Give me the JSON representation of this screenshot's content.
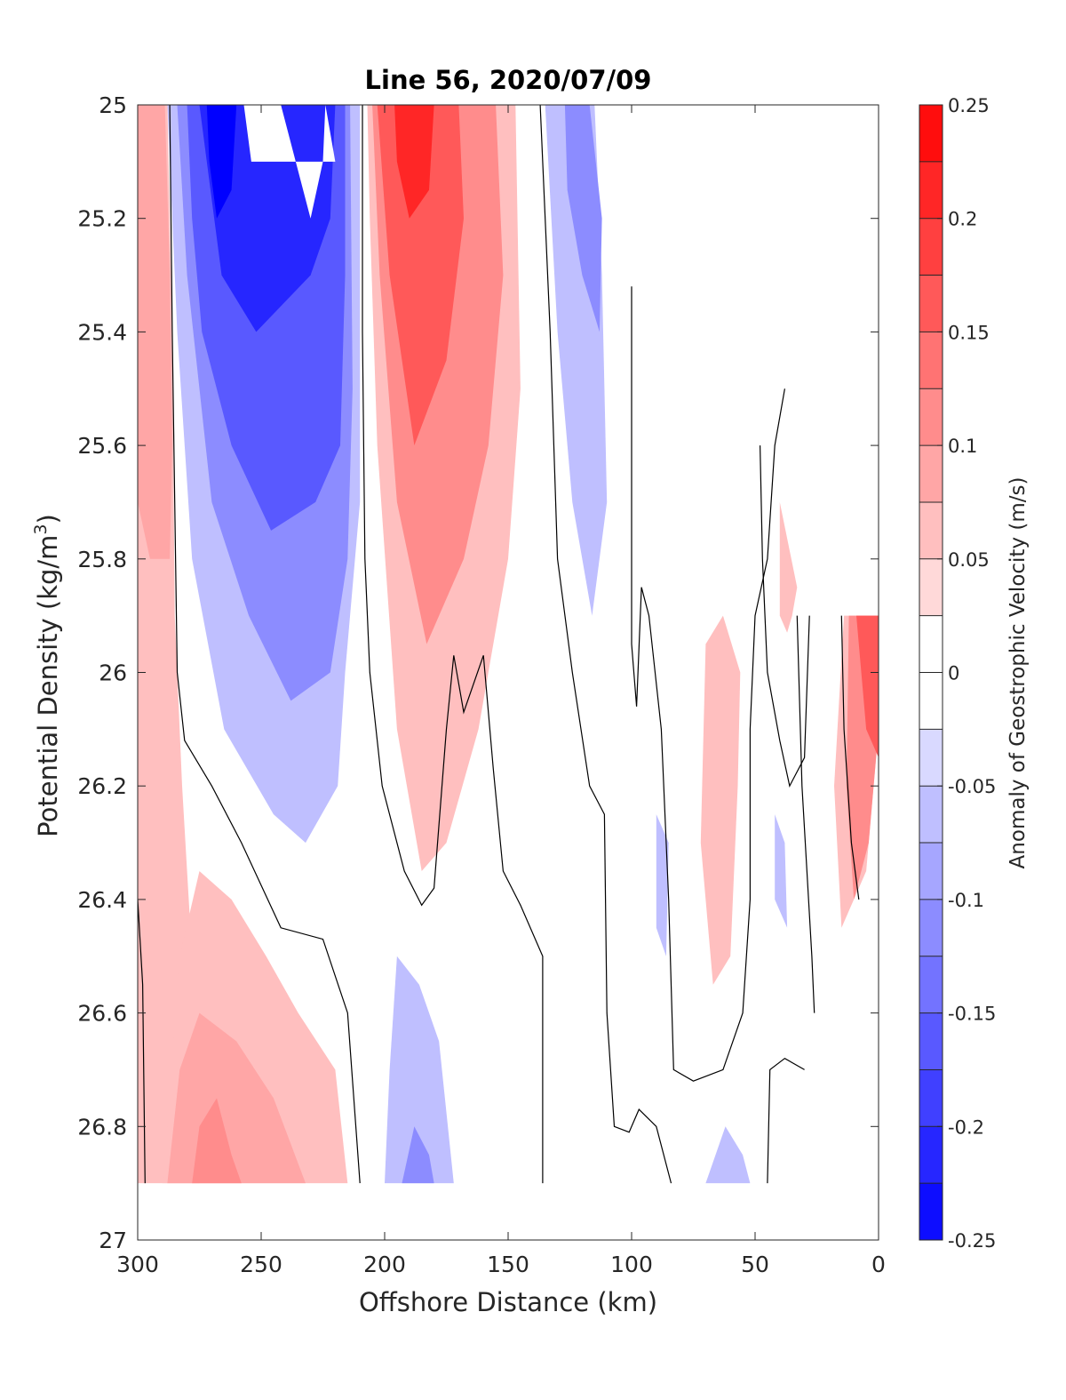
{
  "chart_data": {
    "type": "heatmap",
    "subtype": "filled-contour",
    "title": "Line 56, 2020/07/09",
    "xlabel": "Offshore Distance (km)",
    "ylabel_main": "Potential Density (kg/m",
    "ylabel_sup": "3",
    "ylabel_close": ")",
    "x_reversed": true,
    "y_reversed": true,
    "xlim": [
      0,
      300
    ],
    "ylim": [
      25,
      27
    ],
    "xticks": [
      "300",
      "250",
      "200",
      "150",
      "100",
      "50",
      "0"
    ],
    "yticks": [
      "25",
      "25.2",
      "25.4",
      "25.6",
      "25.8",
      "26",
      "26.2",
      "26.4",
      "26.6",
      "26.8",
      "27"
    ],
    "colorbar": {
      "label": "Anomaly of Geostrophic Velocity (m/s)",
      "range": [
        -0.25,
        0.25
      ],
      "ticks": [
        "0.25",
        "0.2",
        "0.15",
        "0.1",
        "0.05",
        "0",
        "-0.05",
        "-0.1",
        "-0.15",
        "-0.2",
        "-0.25"
      ],
      "levels": 20,
      "colormap": "blue-white-red",
      "low_color": "#0000ff",
      "mid_color": "#ffffff",
      "high_color": "#ff0000"
    },
    "data_extent": {
      "x_min": 0,
      "x_max": 300,
      "sigma_min": 25,
      "sigma_max": 26.9
    },
    "features": [
      {
        "kind": "positive",
        "level": 0.05,
        "poly": [
          [
            300,
            25
          ],
          [
            288,
            25
          ],
          [
            286,
            25.4
          ],
          [
            285,
            25.9
          ],
          [
            282,
            26.2
          ],
          [
            278,
            26.5
          ],
          [
            275,
            26.9
          ],
          [
            300,
            26.9
          ]
        ]
      },
      {
        "kind": "positive",
        "level": 0.075,
        "poly": [
          [
            300,
            25
          ],
          [
            289,
            25
          ],
          [
            287,
            25.3
          ],
          [
            286,
            25.6
          ],
          [
            287,
            25.8
          ],
          [
            295,
            25.8
          ],
          [
            300,
            25.7
          ]
        ]
      },
      {
        "kind": "positive",
        "level": 0.05,
        "poly": [
          [
            290,
            26.9
          ],
          [
            288,
            26.8
          ],
          [
            283,
            26.5
          ],
          [
            275,
            26.35
          ],
          [
            262,
            26.4
          ],
          [
            248,
            26.5
          ],
          [
            235,
            26.6
          ],
          [
            220,
            26.7
          ],
          [
            215,
            26.9
          ]
        ]
      },
      {
        "kind": "positive",
        "level": 0.075,
        "poly": [
          [
            288,
            26.9
          ],
          [
            283,
            26.7
          ],
          [
            275,
            26.6
          ],
          [
            260,
            26.65
          ],
          [
            245,
            26.75
          ],
          [
            232,
            26.9
          ]
        ]
      },
      {
        "kind": "positive",
        "level": 0.1,
        "poly": [
          [
            278,
            26.9
          ],
          [
            275,
            26.8
          ],
          [
            268,
            26.75
          ],
          [
            262,
            26.85
          ],
          [
            258,
            26.9
          ]
        ]
      },
      {
        "kind": "negative",
        "level": -0.05,
        "poly": [
          [
            288,
            25
          ],
          [
            210,
            25
          ],
          [
            210,
            25.7
          ],
          [
            216,
            26
          ],
          [
            219,
            26.2
          ],
          [
            232,
            26.3
          ],
          [
            245,
            26.25
          ],
          [
            265,
            26.1
          ],
          [
            278,
            25.8
          ],
          [
            284,
            25.4
          ]
        ]
      },
      {
        "kind": "negative",
        "level": -0.1,
        "poly": [
          [
            284,
            25
          ],
          [
            214,
            25
          ],
          [
            213,
            25.5
          ],
          [
            215,
            25.8
          ],
          [
            222,
            26
          ],
          [
            238,
            26.05
          ],
          [
            255,
            25.9
          ],
          [
            270,
            25.7
          ],
          [
            280,
            25.3
          ]
        ]
      },
      {
        "kind": "negative",
        "level": -0.15,
        "poly": [
          [
            280,
            25
          ],
          [
            216,
            25
          ],
          [
            216,
            25.3
          ],
          [
            218,
            25.6
          ],
          [
            228,
            25.7
          ],
          [
            246,
            25.75
          ],
          [
            262,
            25.6
          ],
          [
            274,
            25.4
          ],
          [
            278,
            25.2
          ]
        ]
      },
      {
        "kind": "negative",
        "level": -0.2,
        "poly": [
          [
            275,
            25
          ],
          [
            220,
            25
          ],
          [
            222,
            25.2
          ],
          [
            230,
            25.3
          ],
          [
            252,
            25.4
          ],
          [
            266,
            25.3
          ],
          [
            272,
            25.1
          ]
        ]
      },
      {
        "kind": "negative",
        "level": -0.25,
        "poly": [
          [
            272,
            25
          ],
          [
            260,
            25
          ],
          [
            262,
            25.15
          ],
          [
            268,
            25.2
          ],
          [
            271,
            25.1
          ]
        ]
      },
      {
        "kind": "gap",
        "level": 0,
        "poly": [
          [
            257,
            25
          ],
          [
            242,
            25
          ],
          [
            236,
            25.1
          ],
          [
            230,
            25.2
          ],
          [
            225,
            25.1
          ],
          [
            224,
            25
          ],
          [
            220,
            25.1
          ],
          [
            254,
            25.1
          ]
        ]
      },
      {
        "kind": "positive",
        "level": 0.05,
        "poly": [
          [
            207,
            25
          ],
          [
            147,
            25
          ],
          [
            145,
            25.5
          ],
          [
            150,
            25.8
          ],
          [
            162,
            26.1
          ],
          [
            175,
            26.3
          ],
          [
            185,
            26.35
          ],
          [
            195,
            26.1
          ],
          [
            203,
            25.6
          ],
          [
            206,
            25.2
          ]
        ]
      },
      {
        "kind": "positive",
        "level": 0.1,
        "poly": [
          [
            205,
            25
          ],
          [
            155,
            25
          ],
          [
            152,
            25.3
          ],
          [
            158,
            25.6
          ],
          [
            168,
            25.8
          ],
          [
            183,
            25.95
          ],
          [
            195,
            25.7
          ],
          [
            202,
            25.3
          ]
        ]
      },
      {
        "kind": "positive",
        "level": 0.15,
        "poly": [
          [
            203,
            25
          ],
          [
            170,
            25
          ],
          [
            168,
            25.2
          ],
          [
            175,
            25.45
          ],
          [
            188,
            25.6
          ],
          [
            198,
            25.3
          ]
        ]
      },
      {
        "kind": "positive",
        "level": 0.2,
        "poly": [
          [
            196,
            25
          ],
          [
            180,
            25
          ],
          [
            182,
            25.15
          ],
          [
            190,
            25.2
          ],
          [
            195,
            25.1
          ]
        ]
      },
      {
        "kind": "negative",
        "level": -0.05,
        "poly": [
          [
            200,
            26.9
          ],
          [
            198,
            26.7
          ],
          [
            195,
            26.5
          ],
          [
            186,
            26.55
          ],
          [
            178,
            26.65
          ],
          [
            172,
            26.9
          ]
        ]
      },
      {
        "kind": "negative",
        "level": -0.1,
        "poly": [
          [
            193,
            26.9
          ],
          [
            188,
            26.8
          ],
          [
            182,
            26.85
          ],
          [
            180,
            26.9
          ]
        ]
      },
      {
        "kind": "negative",
        "level": -0.05,
        "poly": [
          [
            135,
            25
          ],
          [
            115,
            25
          ],
          [
            112,
            25.3
          ],
          [
            110,
            25.7
          ],
          [
            116,
            25.9
          ],
          [
            124,
            25.7
          ],
          [
            130,
            25.4
          ]
        ]
      },
      {
        "kind": "negative",
        "level": -0.1,
        "poly": [
          [
            127,
            25
          ],
          [
            117,
            25
          ],
          [
            112,
            25.2
          ],
          [
            113,
            25.4
          ],
          [
            120,
            25.3
          ],
          [
            126,
            25.15
          ]
        ]
      },
      {
        "kind": "positive",
        "level": 0.05,
        "poly": [
          [
            70,
            25.95
          ],
          [
            72,
            26.3
          ],
          [
            67,
            26.55
          ],
          [
            60,
            26.5
          ],
          [
            57,
            26.2
          ],
          [
            56,
            26
          ],
          [
            63,
            25.9
          ]
        ]
      },
      {
        "kind": "positive",
        "level": 0.05,
        "poly": [
          [
            40,
            25.7
          ],
          [
            33,
            25.85
          ],
          [
            35,
            25.9
          ],
          [
            37,
            25.93
          ],
          [
            40,
            25.9
          ]
        ]
      },
      {
        "kind": "negative",
        "level": -0.05,
        "poly": [
          [
            90,
            26.25
          ],
          [
            85,
            26.3
          ],
          [
            86,
            26.5
          ],
          [
            90,
            26.45
          ]
        ]
      },
      {
        "kind": "negative",
        "level": -0.05,
        "poly": [
          [
            42,
            26.25
          ],
          [
            38,
            26.3
          ],
          [
            37,
            26.45
          ],
          [
            42,
            26.4
          ]
        ]
      },
      {
        "kind": "negative",
        "level": -0.05,
        "poly": [
          [
            70,
            26.9
          ],
          [
            62,
            26.8
          ],
          [
            55,
            26.85
          ],
          [
            52,
            26.9
          ]
        ]
      },
      {
        "kind": "positive",
        "level": 0.05,
        "poly": [
          [
            14,
            25.9
          ],
          [
            0,
            25.9
          ],
          [
            0,
            26.1
          ],
          [
            5,
            26.35
          ],
          [
            15,
            26.45
          ],
          [
            18,
            26.2
          ]
        ]
      },
      {
        "kind": "positive",
        "level": 0.1,
        "poly": [
          [
            12,
            25.9
          ],
          [
            0,
            25.9
          ],
          [
            0,
            26.1
          ],
          [
            4,
            26.3
          ],
          [
            10,
            26.4
          ],
          [
            13,
            26.2
          ]
        ]
      },
      {
        "kind": "positive",
        "level": 0.15,
        "poly": [
          [
            9,
            25.9
          ],
          [
            0,
            25.9
          ],
          [
            0,
            26.15
          ],
          [
            5,
            26.1
          ]
        ]
      }
    ],
    "zero_contours": [
      [
        [
          287,
          25
        ],
        [
          286,
          25.4
        ],
        [
          285,
          25.7
        ],
        [
          284,
          26
        ],
        [
          281,
          26.12
        ],
        [
          270,
          26.2
        ],
        [
          258,
          26.3
        ],
        [
          242,
          26.45
        ],
        [
          225,
          26.47
        ],
        [
          215,
          26.6
        ],
        [
          210,
          26.9
        ]
      ],
      [
        [
          300,
          26.4
        ],
        [
          298,
          26.55
        ],
        [
          297,
          26.9
        ]
      ],
      [
        [
          209,
          25
        ],
        [
          209,
          25.4
        ],
        [
          208,
          25.8
        ],
        [
          206,
          26
        ],
        [
          201,
          26.2
        ],
        [
          192,
          26.35
        ],
        [
          185,
          26.41
        ],
        [
          180,
          26.38
        ],
        [
          175,
          26.1
        ],
        [
          172,
          25.97
        ],
        [
          168,
          26.07
        ],
        [
          160,
          25.97
        ],
        [
          156,
          26.17
        ],
        [
          152,
          26.35
        ],
        [
          145,
          26.41
        ],
        [
          136,
          26.5
        ],
        [
          136,
          26.9
        ]
      ],
      [
        [
          137,
          25
        ],
        [
          133,
          25.4
        ],
        [
          130,
          25.8
        ],
        [
          124,
          26
        ],
        [
          117,
          26.2
        ],
        [
          111,
          26.25
        ],
        [
          110,
          26.6
        ],
        [
          107,
          26.8
        ],
        [
          101,
          26.81
        ],
        [
          97,
          26.77
        ],
        [
          90,
          26.8
        ],
        [
          84,
          26.9
        ]
      ],
      [
        [
          100,
          25.32
        ],
        [
          100,
          25.6
        ],
        [
          100,
          25.95
        ],
        [
          98,
          26.06
        ],
        [
          96,
          25.85
        ],
        [
          93,
          25.9
        ],
        [
          88,
          26.1
        ],
        [
          85,
          26.4
        ],
        [
          83,
          26.7
        ],
        [
          75,
          26.72
        ],
        [
          63,
          26.7
        ],
        [
          55,
          26.6
        ],
        [
          52,
          26.4
        ],
        [
          52,
          26.1
        ],
        [
          50,
          25.9
        ],
        [
          45,
          25.8
        ],
        [
          42,
          25.6
        ],
        [
          38,
          25.5
        ]
      ],
      [
        [
          48,
          25.6
        ],
        [
          47,
          25.8
        ],
        [
          45,
          26
        ],
        [
          40,
          26.12
        ],
        [
          36,
          26.2
        ],
        [
          30,
          26.15
        ],
        [
          28,
          25.9
        ]
      ],
      [
        [
          33,
          25.9
        ],
        [
          31,
          26.2
        ],
        [
          27,
          26.5
        ],
        [
          26,
          26.6
        ]
      ],
      [
        [
          45,
          26.9
        ],
        [
          44,
          26.7
        ],
        [
          38,
          26.68
        ],
        [
          30,
          26.7
        ]
      ],
      [
        [
          15,
          25.9
        ],
        [
          14,
          26.1
        ],
        [
          11,
          26.3
        ],
        [
          8,
          26.4
        ]
      ]
    ]
  }
}
